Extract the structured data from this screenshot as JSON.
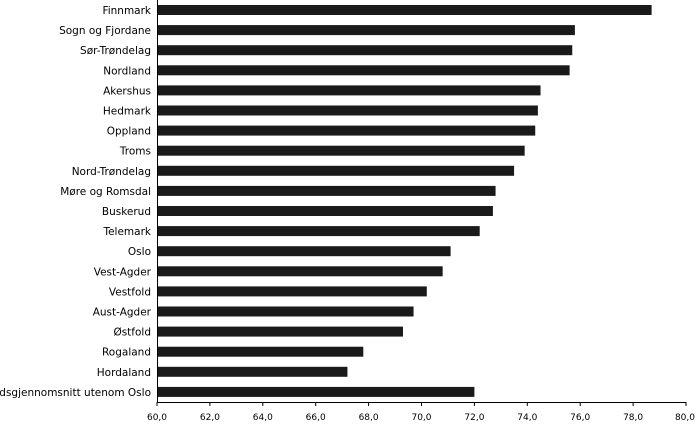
{
  "chart_data": {
    "type": "bar",
    "orientation": "horizontal",
    "categories": [
      "Finnmark",
      "Sogn og Fjordane",
      "Sør-Trøndelag",
      "Nordland",
      "Akershus",
      "Hedmark",
      "Oppland",
      "Troms",
      "Nord-Trøndelag",
      "Møre og Romsdal",
      "Buskerud",
      "Telemark",
      "Oslo",
      "Vest-Agder",
      "Vestfold",
      "Aust-Agder",
      "Østfold",
      "Rogaland",
      "Hordaland",
      "Landsgjennomsnitt utenom Oslo"
    ],
    "values": [
      78.7,
      75.8,
      75.7,
      75.6,
      74.5,
      74.4,
      74.3,
      73.9,
      73.5,
      72.8,
      72.7,
      72.2,
      71.1,
      70.8,
      70.2,
      69.7,
      69.3,
      67.8,
      67.2,
      72.0
    ],
    "title": "",
    "xlabel": "",
    "ylabel": "",
    "xlim": [
      60,
      80
    ],
    "x_ticks": [
      "60,0",
      "62,0",
      "64,0",
      "66,0",
      "68,0",
      "70,0",
      "72,0",
      "74,0",
      "76,0",
      "78,0",
      "80,0"
    ],
    "x_tick_values": [
      60,
      62,
      64,
      66,
      68,
      70,
      72,
      74,
      76,
      78,
      80
    ],
    "grid": false,
    "legend": "none",
    "bar_color": "#1a1a1a"
  }
}
